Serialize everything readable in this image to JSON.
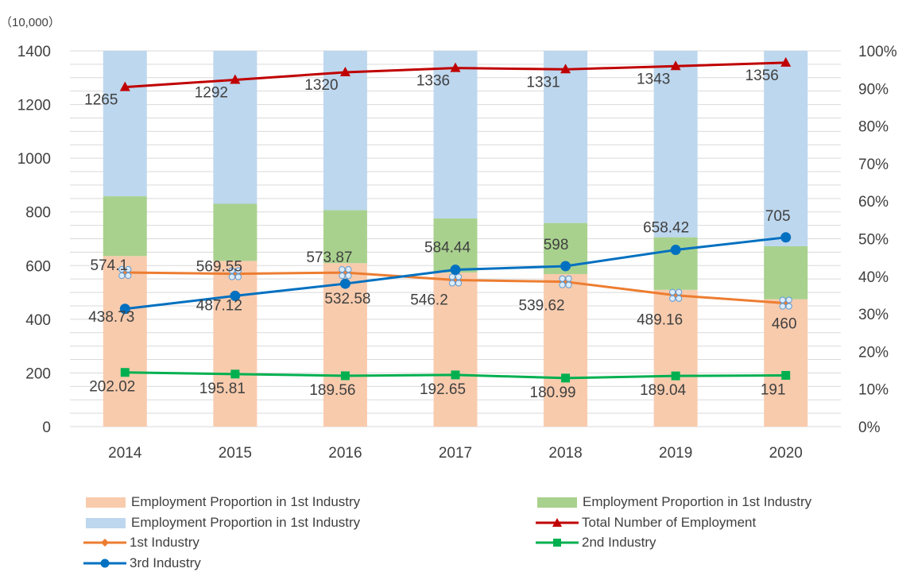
{
  "chart_data": {
    "type": "bar",
    "stacked": true,
    "title": "",
    "unit_label": "（10,000）",
    "categories": [
      "2014",
      "2015",
      "2016",
      "2017",
      "2018",
      "2019",
      "2020"
    ],
    "y_left": {
      "min": 0,
      "max": 1400,
      "step": 200,
      "ticks": [
        "0",
        "200",
        "400",
        "600",
        "800",
        "1000",
        "1200",
        "1400"
      ]
    },
    "y_right": {
      "min": 0,
      "max": 100,
      "step": 10,
      "ticks": [
        "0%",
        "10%",
        "20%",
        "30%",
        "40%",
        "50%",
        "60%",
        "70%",
        "80%",
        "90%",
        "100%"
      ]
    },
    "grid": true,
    "bar_series": [
      {
        "name": "Employment Proportion in 1st Industry",
        "color": "#F8CBAD",
        "values": [
          45.4,
          44.1,
          43.5,
          41.0,
          40.6,
          36.4,
          33.9
        ]
      },
      {
        "name": "Employment Proportion in 1st Industry",
        "color": "#A9D18E",
        "values": [
          15.9,
          15.2,
          14.1,
          14.4,
          13.6,
          14.0,
          14.1
        ]
      },
      {
        "name": "Employment Proportion in 1st Industry",
        "color": "#BDD7EE",
        "values": [
          38.7,
          40.7,
          42.4,
          44.6,
          45.8,
          49.6,
          52.0
        ]
      }
    ],
    "line_series": [
      {
        "name": "Total Number of Employment",
        "color": "#C00000",
        "marker": "triangle",
        "values": [
          1265,
          1292,
          1320,
          1336,
          1331,
          1343,
          1356
        ],
        "labels": [
          "1265",
          "1292",
          "1320",
          "1336",
          "1331",
          "1343",
          "1356"
        ]
      },
      {
        "name": "1st Industry",
        "color": "#ED7D31",
        "marker": "diamond",
        "values": [
          574.1,
          569.55,
          573.87,
          546.2,
          539.62,
          489.16,
          460
        ],
        "labels": [
          "574.1",
          "569.55",
          "573.87",
          "546.2",
          "539.62",
          "489.16",
          "460"
        ]
      },
      {
        "name": "2nd Industry",
        "color": "#00B050",
        "marker": "square",
        "values": [
          202.02,
          195.81,
          189.56,
          192.65,
          180.99,
          189.04,
          191
        ],
        "labels": [
          "202.02",
          "195.81",
          "189.56",
          "192.65",
          "180.99",
          "189.04",
          "191"
        ]
      },
      {
        "name": "3rd Industry",
        "color": "#0070C0",
        "marker": "circle",
        "values": [
          438.73,
          487.12,
          532.58,
          584.44,
          598,
          658.42,
          705
        ],
        "labels": [
          "438.73",
          "487.12",
          "532.58",
          "584.44",
          "598",
          "658.42",
          "705"
        ]
      }
    ],
    "legend_position": "bottom"
  }
}
